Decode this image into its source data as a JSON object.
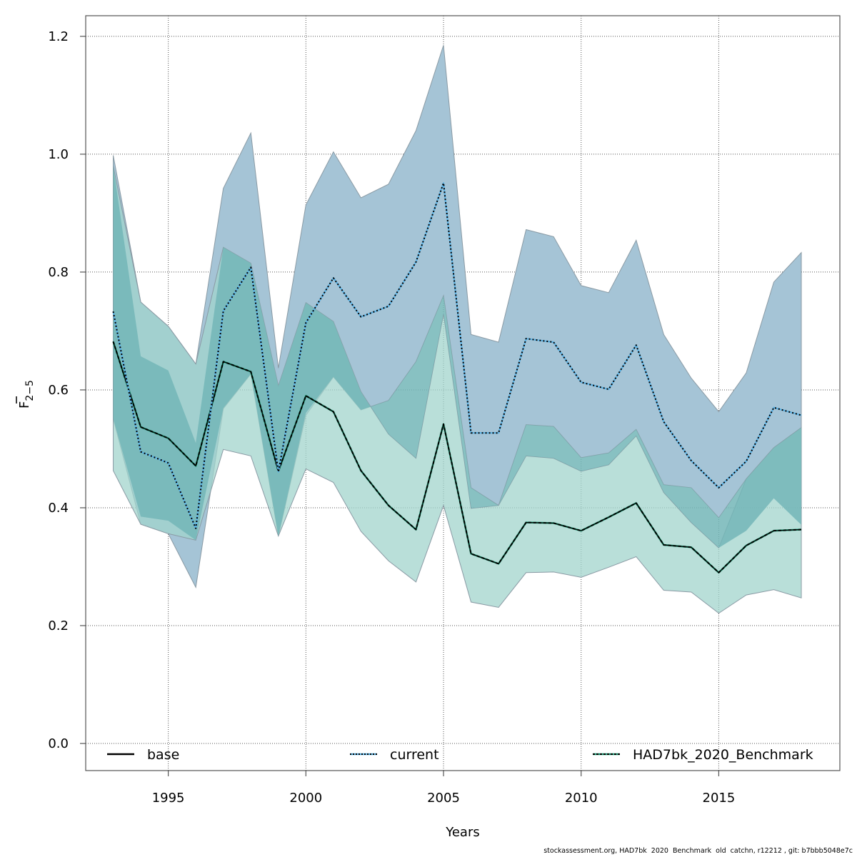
{
  "chart_data": {
    "type": "line",
    "title": "",
    "xlabel": "Years",
    "ylabel": "F̄ 2–5",
    "ylabel_main": "F",
    "ylabel_sub": "2−5",
    "xlim": [
      1992.0,
      2019.4
    ],
    "ylim": [
      -0.046,
      1.235
    ],
    "grid": true,
    "x_ticks": [
      1995,
      2000,
      2005,
      2010,
      2015
    ],
    "x_tick_labels": [
      "1995",
      "2000",
      "2005",
      "2010",
      "2015"
    ],
    "y_ticks": [
      0.0,
      0.2,
      0.4,
      0.6,
      0.8,
      1.0,
      1.2
    ],
    "y_tick_labels": [
      "0.0",
      "0.2",
      "0.4",
      "0.6",
      "0.8",
      "1.0",
      "1.2"
    ],
    "x": [
      1993,
      1994,
      1995,
      1996,
      1997,
      1998,
      1999,
      2000,
      2001,
      2002,
      2003,
      2004,
      2005,
      2006,
      2007,
      2008,
      2009,
      2010,
      2011,
      2012,
      2013,
      2014,
      2015,
      2016,
      2017,
      2018
    ],
    "series": [
      {
        "name": "base",
        "line_style": "solid",
        "line_color": "#000000",
        "band_color": "#1b9e77",
        "values": [
          0.682,
          0.537,
          0.518,
          0.471,
          0.648,
          0.631,
          0.462,
          0.59,
          0.563,
          0.463,
          0.404,
          0.363,
          0.542,
          0.322,
          0.305,
          0.375,
          0.374,
          0.361,
          0.384,
          0.408,
          0.337,
          0.333,
          0.29,
          0.336,
          0.361,
          0.363
        ],
        "lower": [
          0.551,
          0.385,
          0.378,
          0.345,
          0.569,
          0.627,
          0.352,
          0.561,
          0.622,
          0.566,
          0.523,
          0.484,
          0.729,
          0.399,
          0.404,
          0.488,
          0.484,
          0.462,
          0.473,
          0.522,
          0.426,
          0.375,
          0.332,
          0.361,
          0.416,
          0.371
        ],
        "upper": [
          0.98,
          0.657,
          0.633,
          0.51,
          0.842,
          0.815,
          0.607,
          0.748,
          0.716,
          0.597,
          0.525,
          0.484,
          0.729,
          0.399,
          0.404,
          0.488,
          0.484,
          0.462,
          0.473,
          0.522,
          0.426,
          0.375,
          0.332,
          0.361,
          0.416,
          0.371
        ]
      },
      {
        "name": "current",
        "line_style": "dotted",
        "line_color": "#1f78b4",
        "band_color": "#4c87a8",
        "values": [
          0.733,
          0.495,
          0.476,
          0.365,
          0.734,
          0.808,
          0.461,
          0.714,
          0.79,
          0.724,
          0.742,
          0.817,
          0.951,
          0.527,
          0.527,
          0.687,
          0.681,
          0.613,
          0.601,
          0.676,
          0.546,
          0.48,
          0.434,
          0.479,
          0.57,
          0.557
        ],
        "lower": [
          0.551,
          0.372,
          0.356,
          0.265,
          0.568,
          0.627,
          0.352,
          0.557,
          0.622,
          0.566,
          0.582,
          0.648,
          0.76,
          0.434,
          0.404,
          0.541,
          0.538,
          0.485,
          0.493,
          0.533,
          0.439,
          0.434,
          0.383,
          0.449,
          0.502,
          0.536
        ],
        "upper": [
          0.998,
          0.749,
          0.708,
          0.644,
          0.942,
          1.036,
          0.637,
          0.914,
          1.004,
          0.926,
          0.949,
          1.04,
          1.185,
          0.694,
          0.681,
          0.872,
          0.86,
          0.777,
          0.765,
          0.854,
          0.694,
          0.62,
          0.563,
          0.629,
          0.783,
          0.833
        ]
      },
      {
        "name": "HAD7bk_2020_Benchmark",
        "line_style": "dashed",
        "line_color": "#1b9e77",
        "band_color": "#1b9e77",
        "values": [
          0.682,
          0.537,
          0.518,
          0.471,
          0.648,
          0.631,
          0.462,
          0.59,
          0.563,
          0.463,
          0.404,
          0.363,
          0.542,
          0.322,
          0.305,
          0.375,
          0.374,
          0.361,
          0.384,
          0.408,
          0.337,
          0.333,
          0.29,
          0.336,
          0.361,
          0.363
        ],
        "lower": [
          0.463,
          0.372,
          0.356,
          0.345,
          0.499,
          0.488,
          0.352,
          0.466,
          0.443,
          0.36,
          0.31,
          0.274,
          0.404,
          0.24,
          0.231,
          0.29,
          0.291,
          0.282,
          0.299,
          0.317,
          0.26,
          0.257,
          0.221,
          0.252,
          0.261,
          0.247
        ],
        "upper": [
          0.98,
          0.749,
          0.708,
          0.644,
          0.842,
          0.815,
          0.607,
          0.748,
          0.716,
          0.597,
          0.525,
          0.484,
          0.729,
          0.399,
          0.404,
          0.488,
          0.484,
          0.462,
          0.473,
          0.522,
          0.426,
          0.375,
          0.332,
          0.449,
          0.502,
          0.536
        ]
      }
    ],
    "legend": {
      "placement": "bottom",
      "entries": [
        "base",
        "current",
        "HAD7bk_2020_Benchmark"
      ]
    },
    "colors": {
      "band_blue": "#a5c4d6",
      "band_green": "#a1d4cc",
      "band_overlap": "#73b6b7",
      "grid": "#555555"
    }
  },
  "footer": "stockassessment.org, HAD7bk  2020  Benchmark  old  catchn, r12212 , git: b7bbb5048e7c"
}
